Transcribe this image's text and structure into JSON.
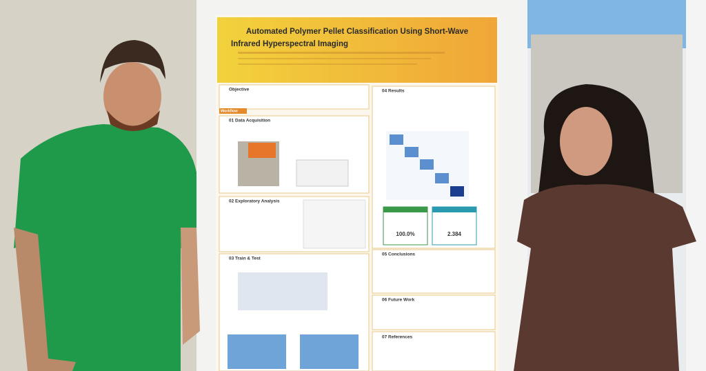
{
  "poster": {
    "title_lines": [
      "Automated Polymer Pellet Classification Using Short-Wave",
      "Infrared Hyperspectral Imaging"
    ],
    "sections": [
      "Objective",
      "Workflow",
      "01 Data Acquisition",
      "02 Exploratory Analysis",
      "03 Train & Test",
      "04 Results",
      "05 Conclusions",
      "06 Future Work",
      "07 References"
    ],
    "metrics": [
      "100.0%",
      "2.384"
    ]
  }
}
